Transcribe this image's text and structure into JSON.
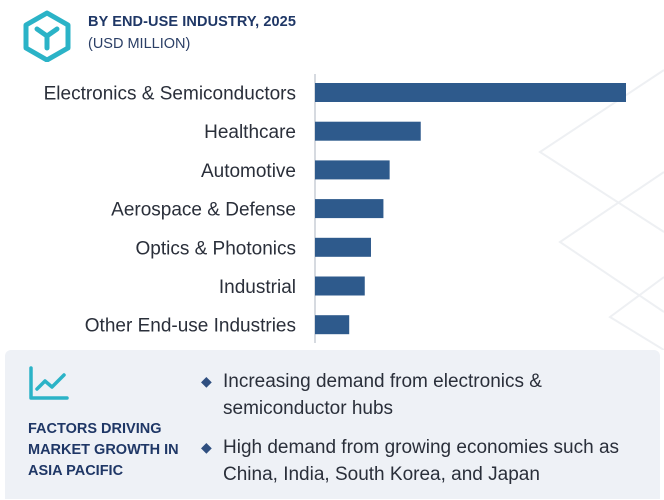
{
  "header": {
    "title": "BY END-USE INDUSTRY, 2025",
    "subtitle": "(USD MILLION)"
  },
  "colors": {
    "bar": "#2e5a8c",
    "accent": "#2bb3c7",
    "brand_dark": "#1f3766",
    "footer_bg": "#eef1f6"
  },
  "icons": {
    "logo": "hexagon-y-logo",
    "trend": "trend-line-icon",
    "bullet": "diamond-bullet"
  },
  "chart_data": {
    "type": "bar",
    "orientation": "horizontal",
    "categories": [
      "Electronics & Semiconductors",
      "Healthcare",
      "Automotive",
      "Aerospace & Defense",
      "Optics & Photonics",
      "Industrial",
      "Other End-use Industries"
    ],
    "values": [
      100,
      34,
      24,
      22,
      18,
      16,
      11
    ],
    "value_axis_visible": false,
    "grid": false
  },
  "footer": {
    "factors_title": "FACTORS DRIVING MARKET GROWTH IN ASIA PACIFIC",
    "factors": [
      "Increasing demand from electronics & semiconductor hubs",
      "High demand from growing economies such as China, India, South Korea, and Japan"
    ]
  }
}
